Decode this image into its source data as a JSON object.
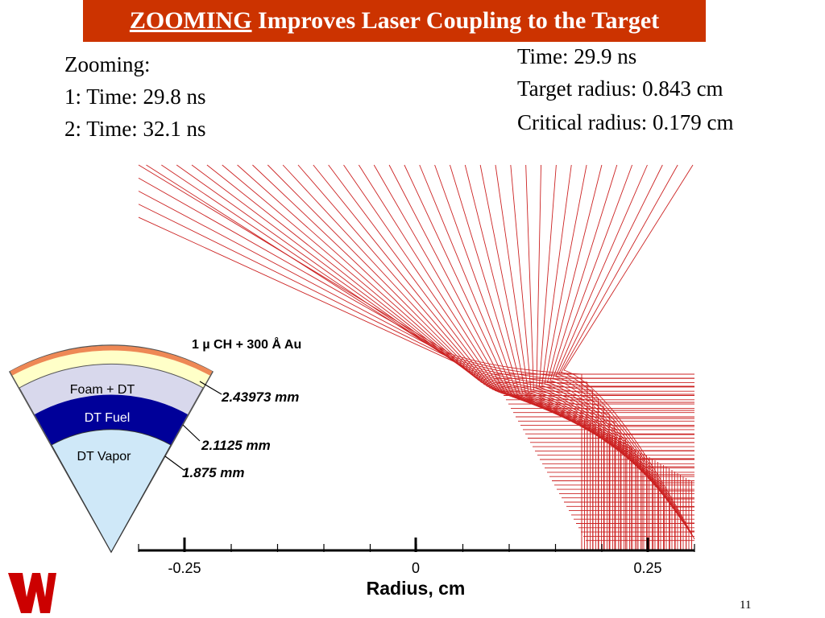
{
  "title": {
    "highlight": "ZOOMING",
    "rest": " Improves Laser Coupling to the Target"
  },
  "zoom_info": {
    "line1": "Zooming:",
    "line2": "1: Time: 29.8 ns",
    "line3": "2: Time: 32.1 ns"
  },
  "run_info": {
    "time": "Time: 29.9 ns",
    "target_radius": "Target radius: 0.843 cm",
    "critical_radius": "Critical radius: 0.179 cm"
  },
  "target": {
    "coating_label": "1 µ CH + 300 Å Au",
    "layer_outer": "Foam + DT",
    "layer_mid": "DT Fuel",
    "layer_inner": "DT Vapor",
    "r_outer": "2.43973 mm",
    "r_mid": "2.1125 mm",
    "r_inner": "1.875 mm"
  },
  "axis": {
    "xlabel": "Radius, cm",
    "ticks": [
      "-0.25",
      "0",
      "0.25"
    ]
  },
  "slide_number": "11",
  "colors": {
    "title_bg": "#cc3300",
    "ray": "#cc2222",
    "fuel": "#000099",
    "foam": "#d8d8ec",
    "vapor": "#cfe8f8",
    "coating": "#ee8855",
    "shell": "#ffffc8",
    "logo": "#cc0000"
  }
}
